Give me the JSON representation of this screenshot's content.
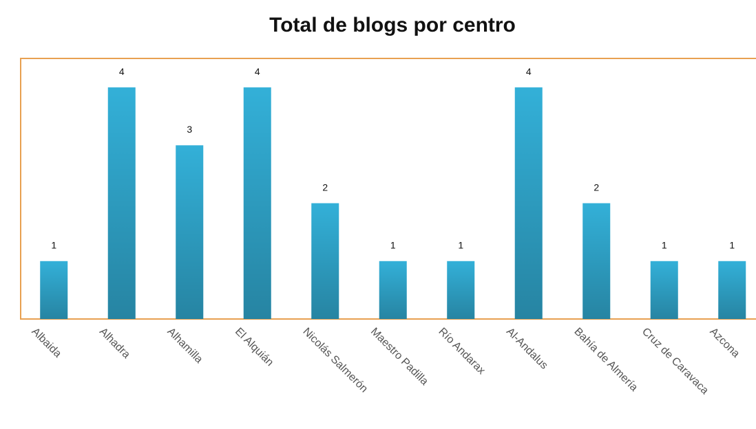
{
  "chart_data": {
    "type": "bar",
    "title": "Total de blogs por centro",
    "categories": [
      "Albaida",
      "Alhadra",
      "Alhamilla",
      "El Alquián",
      "Nicolás Salmerón",
      "Maestro Padilla",
      "Río Andarax",
      "Al-Andalus",
      "Bahía de Almería",
      "Cruz de Caravaca",
      "Azcona"
    ],
    "values": [
      1,
      4,
      3,
      4,
      2,
      1,
      1,
      4,
      2,
      1,
      1
    ],
    "color": "#33b0d8",
    "ylim": [
      0,
      4.5
    ]
  }
}
